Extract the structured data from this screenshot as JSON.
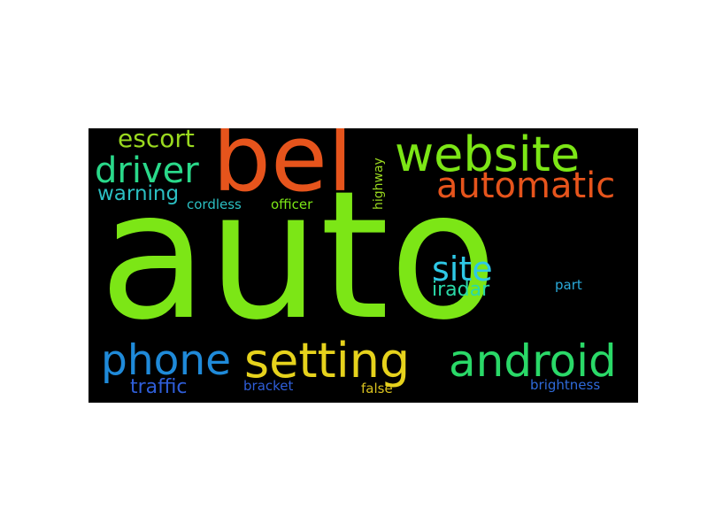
{
  "words": {
    "auto": {
      "text": "auto",
      "color": "#7ce616"
    },
    "bel": {
      "text": "bel",
      "color": "#e6541c"
    },
    "website": {
      "text": "website",
      "color": "#7ce616"
    },
    "automatic": {
      "text": "automatic",
      "color": "#e6541c"
    },
    "driver": {
      "text": "driver",
      "color": "#2ad98a"
    },
    "escort": {
      "text": "escort",
      "color": "#9ad91f"
    },
    "warning": {
      "text": "warning",
      "color": "#2bbfc2"
    },
    "cordless": {
      "text": "cordless",
      "color": "#2bbfc2"
    },
    "officer": {
      "text": "officer",
      "color": "#7ce616"
    },
    "highway": {
      "text": "highway",
      "color": "#9ad91f"
    },
    "site": {
      "text": "site",
      "color": "#2ec8e6"
    },
    "iradar": {
      "text": "iradar",
      "color": "#2ad9a8"
    },
    "part": {
      "text": "part",
      "color": "#2aa9d9"
    },
    "phone": {
      "text": "phone",
      "color": "#1f8ad9"
    },
    "setting": {
      "text": "setting",
      "color": "#e6d21c"
    },
    "android": {
      "text": "android",
      "color": "#2ad968"
    },
    "traffic": {
      "text": "traffic",
      "color": "#2f5ed9"
    },
    "bracket": {
      "text": "bracket",
      "color": "#2f5ed9"
    },
    "false": {
      "text": "false",
      "color": "#d9c21f"
    },
    "brightness": {
      "text": "brightness",
      "color": "#2f6ad9"
    }
  },
  "background_color": "#000000"
}
